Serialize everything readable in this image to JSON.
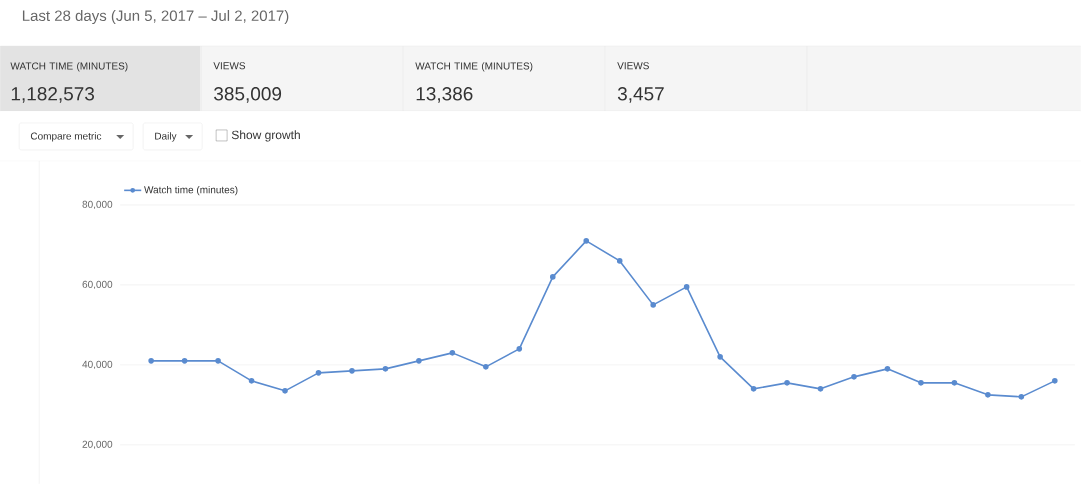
{
  "chart_data": {
    "type": "line",
    "title": "Last 28 days (Jun 5, 2017 – Jul 2, 2017)",
    "annotations": [
      "WATCH TIME (MINUTES)",
      "1,182,573",
      "VIEWS",
      "385,009",
      "WATCH TIME (MINUTES)",
      "13,386",
      "VIEWS",
      "3,457",
      "Compare metric",
      "Daily",
      "Show growth"
    ],
    "categories": [
      null,
      null,
      null,
      null,
      null,
      null,
      null,
      null,
      null,
      null,
      null,
      null,
      null,
      null,
      null,
      null,
      null,
      null,
      null,
      null,
      null,
      null,
      null,
      null,
      null,
      null,
      null,
      null
    ],
    "series": [
      {
        "name": "Watch time (minutes)",
        "color": "#5a8bcf",
        "values": [
          41000,
          41000,
          41000,
          36000,
          33500,
          38000,
          38500,
          39000,
          41000,
          43000,
          39500,
          44000,
          62000,
          71000,
          66000,
          55000,
          59500,
          42000,
          34000,
          35500,
          34000,
          37000,
          39000,
          35500,
          35500,
          32500,
          32000,
          36000
        ]
      }
    ],
    "ylim": [
      20000,
      80000
    ],
    "yticks": [
      {
        "value": 20000,
        "label": "20,000"
      },
      {
        "value": 40000,
        "label": "40,000"
      },
      {
        "value": 60000,
        "label": "60,000"
      },
      {
        "value": 80000,
        "label": "80,000"
      }
    ],
    "grid": "y",
    "legend": "top left",
    "marker": "circle",
    "line_style": "solid",
    "tick_labels": "y"
  }
}
